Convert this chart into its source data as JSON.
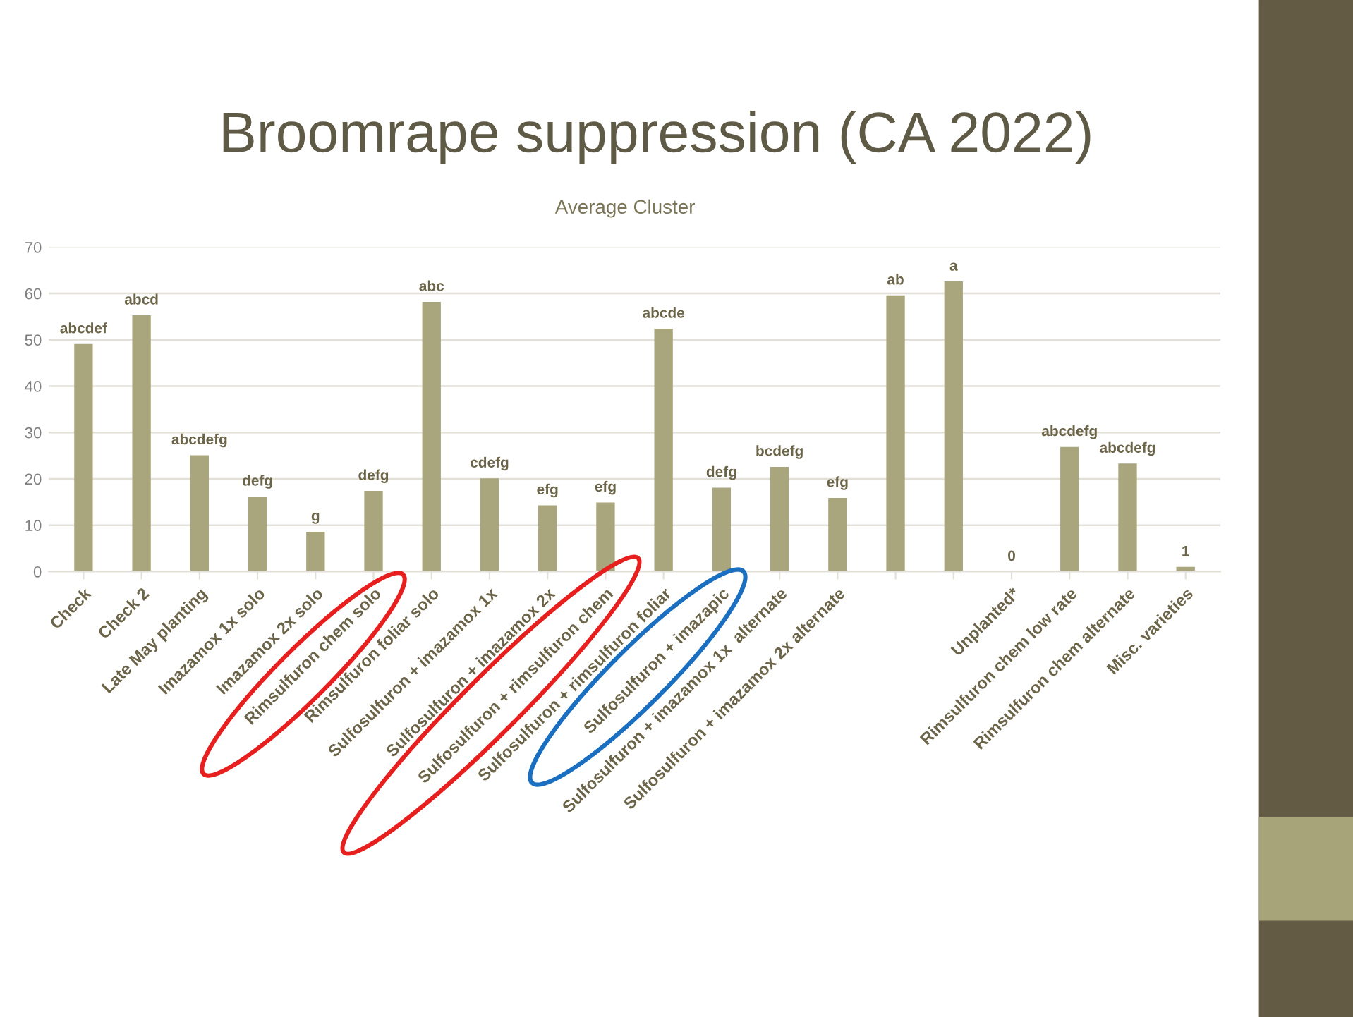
{
  "chart_data": {
    "type": "bar",
    "title": "Broomrape suppression (CA 2022)",
    "subtitle": "Average Cluster",
    "categories": [
      "Check",
      "Check 2",
      "Late May planting",
      "Imazamox 1x solo",
      "Imazamox 2x solo",
      "Rimsulfuron chem solo",
      "Rimsulfuron foliar solo",
      "Sulfosulfuron + imazamox 1x",
      "Sulfosulfuron + imazamox 2x",
      "Sulfosulfuron + rimsulfuron chem",
      "Sulfosulfuron + rimsulfuron foliar",
      "Sulfosulfuron + imazapic",
      "Sulfosulfuron + imazamox 1x  alternate",
      "Sulfosulfuron + imazamox 2x alternate",
      null,
      null,
      "Unplanted*",
      "Rimsulfuron chem low rate",
      "Rimsulfuron chem alternate",
      "Misc. varieties"
    ],
    "values": [
      49.1,
      55.3,
      25.1,
      16.2,
      8.6,
      17.4,
      58.2,
      20.1,
      14.3,
      14.9,
      52.4,
      18.1,
      22.6,
      15.9,
      59.6,
      62.6,
      0,
      26.9,
      23.3,
      1
    ],
    "value_labels": [
      "abcdef",
      "abcd",
      "abcdefg",
      "defg",
      "g",
      "defg",
      "abc",
      "cdefg",
      "efg",
      "efg",
      "abcde",
      "defg",
      "bcdefg",
      "efg",
      "ab",
      "a",
      "0",
      "abcdefg",
      "abcdefg",
      "1"
    ],
    "color": "#a9a57c",
    "ylim": [
      0,
      70
    ],
    "yticks": [
      0,
      10,
      20,
      30,
      40,
      50,
      60,
      70
    ],
    "grid": "y",
    "legend": false
  }
}
